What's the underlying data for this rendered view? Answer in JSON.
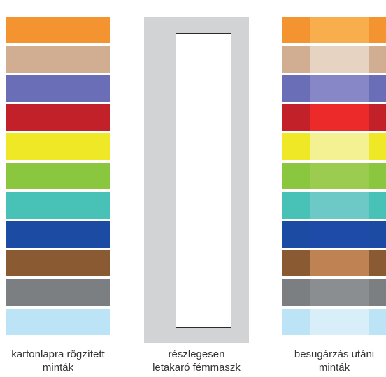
{
  "swatches": [
    {
      "name": "orange",
      "color": "#F39431",
      "irradiated_center": "#F8AE4D"
    },
    {
      "name": "tan",
      "color": "#D1AD92",
      "irradiated_center": "#E7D3C2"
    },
    {
      "name": "blue-violet",
      "color": "#6A6EB7",
      "irradiated_center": "#8787C8"
    },
    {
      "name": "red",
      "color": "#C32129",
      "irradiated_center": "#EC2A2A"
    },
    {
      "name": "yellow",
      "color": "#EFE826",
      "irradiated_center": "#F4F193"
    },
    {
      "name": "green",
      "color": "#8BC63F",
      "irradiated_center": "#9BCC4F"
    },
    {
      "name": "teal",
      "color": "#48C1B6",
      "irradiated_center": "#6CC9C6"
    },
    {
      "name": "royal-blue",
      "color": "#1B4BA3",
      "irradiated_center": "#1E4BA8"
    },
    {
      "name": "brown",
      "color": "#8A5B33",
      "irradiated_center": "#BF8252"
    },
    {
      "name": "gray",
      "color": "#7C7F82",
      "irradiated_center": "#8B8E90"
    },
    {
      "name": "light-blue",
      "color": "#BDE3F6",
      "irradiated_center": "#D8EEF9"
    }
  ],
  "mask": {
    "frame_color": "#D1D3D4",
    "window_color": "#FFFFFF"
  },
  "captions": {
    "left": {
      "line1": "kartonlapra rögzített",
      "line2": "minták"
    },
    "middle": {
      "line1": "részlegesen",
      "line2": "letakaró fémmaszk"
    },
    "right": {
      "line1": "besugárzás utáni",
      "line2": "minták"
    }
  }
}
